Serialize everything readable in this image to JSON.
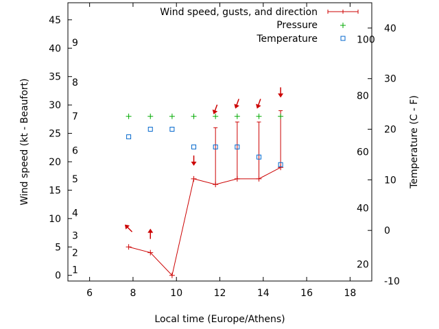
{
  "chart_data": {
    "type": "line",
    "xlabel": "Local time (Europe/Athens)",
    "ylabel_left": "Wind speed (kt - Beaufort)",
    "ylabel_right": "Temperature (C - F)",
    "xlim": [
      5,
      19
    ],
    "ylim": [
      -1,
      48
    ],
    "temp_c_range": [
      -10,
      45
    ],
    "x_ticks": [
      6,
      8,
      10,
      12,
      14,
      16,
      18
    ],
    "y_ticks": [
      0,
      5,
      10,
      15,
      20,
      25,
      30,
      35,
      40,
      45
    ],
    "celsius_ticks": [
      -10,
      0,
      10,
      20,
      30,
      40
    ],
    "fahrenheit_ticks": [
      20,
      40,
      60,
      80,
      100
    ],
    "beaufort_labels": [
      {
        "label": "1",
        "kt": 1
      },
      {
        "label": "2",
        "kt": 4
      },
      {
        "label": "3",
        "kt": 7
      },
      {
        "label": "4",
        "kt": 11
      },
      {
        "label": "5",
        "kt": 17
      },
      {
        "label": "6",
        "kt": 22
      },
      {
        "label": "7",
        "kt": 28
      },
      {
        "label": "8",
        "kt": 34
      },
      {
        "label": "9",
        "kt": 41
      }
    ],
    "legend": {
      "position": "top-right",
      "entries": [
        "Wind speed, gusts, and direction",
        "Pressure",
        "Temperature"
      ]
    },
    "colors": {
      "wind": "#cc0000",
      "pressure": "#00aa00",
      "temperature": "#0066cc"
    },
    "series": [
      {
        "name": "Wind speed, gusts, and direction",
        "x": [
          7.8,
          8.8,
          9.8,
          10.8,
          11.8,
          12.8,
          13.8,
          14.8
        ],
        "wind_kt": [
          5,
          4,
          0,
          17,
          16,
          17,
          17,
          19
        ],
        "gust_kt": [
          null,
          null,
          null,
          null,
          26,
          27,
          27,
          29
        ],
        "arrow_dir_deg": [
          315,
          0,
          null,
          180,
          200,
          200,
          200,
          180
        ]
      },
      {
        "name": "Pressure",
        "x": [
          7.8,
          8.8,
          9.8,
          10.8,
          11.8,
          12.8,
          13.8,
          14.8
        ],
        "values": [
          28,
          28,
          28,
          28,
          28,
          28,
          28,
          28
        ]
      },
      {
        "name": "Temperature",
        "x": [
          7.8,
          8.8,
          9.8,
          10.8,
          11.8,
          12.8,
          13.8,
          14.8
        ],
        "values_c": [
          18.5,
          20,
          20,
          16.5,
          16.5,
          16.5,
          14.5,
          13
        ]
      }
    ]
  }
}
